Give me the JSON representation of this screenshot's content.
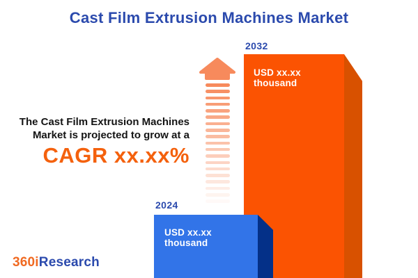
{
  "title": "Cast Film Extrusion Machines Market",
  "promo": {
    "line1": "The Cast Film Extrusion Machines",
    "line2": "Market is projected to grow at a",
    "cagr": "CAGR xx.xx%"
  },
  "bars": {
    "start": {
      "year": "2024",
      "value": "USD xx.xx thousand"
    },
    "end": {
      "year": "2032",
      "value": "USD xx.xx thousand"
    }
  },
  "logo": {
    "part1": "360i",
    "part2": "Research"
  },
  "colors": {
    "title-blue": "#2b4aad",
    "text-dark": "#141414",
    "cagr-orange": "#f4610d",
    "bar-start": "#3274e8",
    "bar-start-side": "#043088",
    "bar-end": "#fb5302",
    "bar-end-side": "#d85100",
    "arrow": "#f78a5c",
    "logo-orange": "#f06a22",
    "logo-blue": "#2b4aad",
    "value-text": "#ffffff"
  },
  "chart_data": {
    "type": "bar",
    "categories": [
      "2024",
      "2032"
    ],
    "values": [
      null,
      null
    ],
    "value_labels": [
      "USD xx.xx thousand",
      "USD xx.xx thousand"
    ],
    "relative_heights": [
      0.28,
      1.0
    ],
    "title": "Cast Film Extrusion Machines Market",
    "annotation": "The Cast Film Extrusion Machines Market is projected to grow at a CAGR xx.xx%",
    "ylabel": "",
    "xlabel": "",
    "legend": false,
    "axes": false,
    "grid": false
  }
}
